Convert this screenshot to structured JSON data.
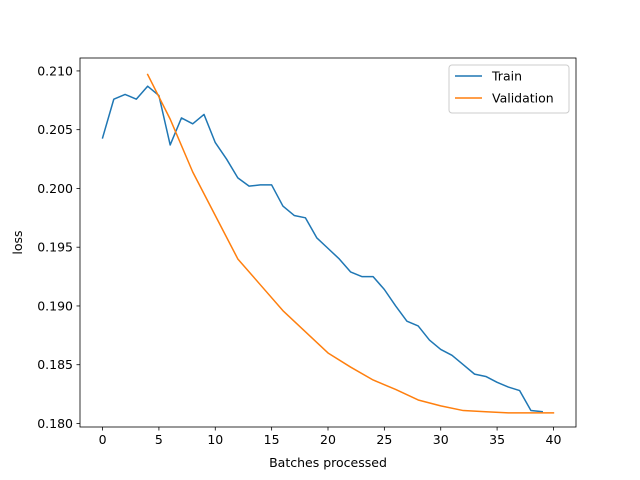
{
  "chart_data": {
    "type": "line",
    "title": "",
    "xlabel": "Batches processed",
    "ylabel": "loss",
    "xlim": [
      -2,
      42
    ],
    "ylim": [
      0.1797,
      0.2111
    ],
    "xticks": [
      0,
      5,
      10,
      15,
      20,
      25,
      30,
      35,
      40
    ],
    "xtick_labels": [
      "0",
      "5",
      "10",
      "15",
      "20",
      "25",
      "30",
      "35",
      "40"
    ],
    "yticks": [
      0.18,
      0.185,
      0.19,
      0.195,
      0.2,
      0.205,
      0.21
    ],
    "ytick_labels": [
      "0.180",
      "0.185",
      "0.190",
      "0.195",
      "0.200",
      "0.205",
      "0.210"
    ],
    "grid": false,
    "legend_position": "top-right",
    "series": [
      {
        "name": "Train",
        "color": "#1f77b4",
        "x": [
          0,
          1,
          2,
          3,
          4,
          5,
          6,
          7,
          8,
          9,
          10,
          11,
          12,
          13,
          14,
          15,
          16,
          17,
          18,
          19,
          20,
          21,
          22,
          23,
          24,
          25,
          26,
          27,
          28,
          29,
          30,
          31,
          32,
          33,
          34,
          35,
          36,
          37,
          38,
          39
        ],
        "y": [
          0.2043,
          0.2076,
          0.208,
          0.2076,
          0.2087,
          0.2079,
          0.2037,
          0.206,
          0.2055,
          0.2063,
          0.2039,
          0.2025,
          0.2009,
          0.2002,
          0.2003,
          0.2003,
          0.1985,
          0.1977,
          0.1975,
          0.1958,
          0.1949,
          0.194,
          0.1929,
          0.1925,
          0.1925,
          0.1914,
          0.19,
          0.1887,
          0.1883,
          0.1871,
          0.1863,
          0.1858,
          0.185,
          0.1842,
          0.184,
          0.1835,
          0.1831,
          0.1828,
          0.1811,
          0.181
        ]
      },
      {
        "name": "Validation",
        "color": "#ff7f0e",
        "x": [
          4,
          6,
          8,
          10,
          12,
          14,
          16,
          18,
          20,
          22,
          24,
          26,
          28,
          30,
          32,
          34,
          36,
          38,
          40
        ],
        "y": [
          0.2097,
          0.2059,
          0.2014,
          0.1977,
          0.194,
          0.1918,
          0.1896,
          0.1878,
          0.186,
          0.1848,
          0.1837,
          0.1829,
          0.182,
          0.1815,
          0.1811,
          0.181,
          0.1809,
          0.1809,
          0.1809
        ]
      }
    ]
  }
}
